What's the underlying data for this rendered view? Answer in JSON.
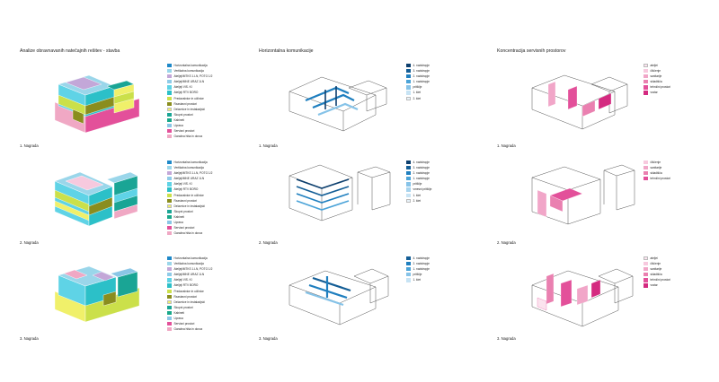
{
  "columns": [
    {
      "id": "stavba",
      "title": "Analize obravnavanih natečajnih rešitev - stavba"
    },
    {
      "id": "horiz",
      "title": "Horizontalna komunikacije"
    },
    {
      "id": "servis",
      "title": "Koncentracija servisnih prostorov"
    }
  ],
  "captions": [
    "1. Nagrada",
    "2. Nagrada",
    "3. Nagrada"
  ],
  "legend_stavba_1": [
    {
      "label": "Horizontalna komunikacija",
      "color": "#1e88c8"
    },
    {
      "label": "Vertikalna komunikacija",
      "color": "#9ad6ea"
    },
    {
      "label": "Ateljeji/MTKS 1.LN, POTG 1/2",
      "color": "#c3a7d8"
    },
    {
      "label": "Ateljeji/MNE URAZ 1LN",
      "color": "#8fcbe8"
    },
    {
      "label": "Ateljeji VIS. KI",
      "color": "#5fd3e6"
    },
    {
      "label": "Ateljeji RTV BORO",
      "color": "#2cc0c8"
    },
    {
      "label": "Predavalnice in učilnice",
      "color": "#cbe04a"
    },
    {
      "label": "Razstavni prostori",
      "color": "#8a8d1e"
    },
    {
      "label": "Delavnice in instalacijski",
      "color": "#f0f06a"
    },
    {
      "label": "Skupni prostori",
      "color": "#1aa595"
    },
    {
      "label": "Kabineti",
      "color": "#18a88a"
    },
    {
      "label": "Uprava",
      "color": "#8ac6e6"
    },
    {
      "label": "Servisni prostori",
      "color": "#e3509a"
    },
    {
      "label": "Garažna hiša in dovoz",
      "color": "#f0a8c4"
    }
  ],
  "legend_stavba_2": [
    {
      "label": "Horizontalna komunikacija",
      "color": "#1e88c8"
    },
    {
      "label": "Vertikalna komunikacija",
      "color": "#9ad6ea"
    },
    {
      "label": "Ateljeji/MTKS 1.LN, POTG 1/2",
      "color": "#c3a7d8"
    },
    {
      "label": "Ateljeji/MNE URAZ 1LN",
      "color": "#8fcbe8"
    },
    {
      "label": "Ateljeji VIS. KI",
      "color": "#5fd3e6"
    },
    {
      "label": "Ateljeji RTV BORO",
      "color": "#2cc0c8"
    },
    {
      "label": "Predavalnice in učilnice",
      "color": "#cbe04a"
    },
    {
      "label": "Razstavni prostori",
      "color": "#8a8d1e"
    },
    {
      "label": "Delavnice in instalacijski",
      "color": "#f0f06a"
    },
    {
      "label": "Skupni prostori",
      "color": "#1aa595"
    },
    {
      "label": "Kabineti",
      "color": "#18a88a"
    },
    {
      "label": "Uprava",
      "color": "#8ac6e6"
    },
    {
      "label": "Servisni prostori",
      "color": "#e3509a"
    },
    {
      "label": "Garažna hiša in dovoz",
      "color": "#f0a8c4"
    }
  ],
  "legend_stavba_3": [
    {
      "label": "Horizontalna komunikacija",
      "color": "#1e88c8"
    },
    {
      "label": "Vertikalna komunikacija",
      "color": "#9ad6ea"
    },
    {
      "label": "Ateljeji/MTKS 1.LN, POTG 1/2",
      "color": "#c3a7d8"
    },
    {
      "label": "Ateljeji/MNE URAZ 1LN",
      "color": "#8fcbe8"
    },
    {
      "label": "Ateljeji VIS. KI",
      "color": "#5fd3e6"
    },
    {
      "label": "Ateljeji RTV BORO",
      "color": "#2cc0c8"
    },
    {
      "label": "Predavalnice in učilnice",
      "color": "#cbe04a"
    },
    {
      "label": "Razstavni prostori",
      "color": "#8a8d1e"
    },
    {
      "label": "Delavnice in instalacijski",
      "color": "#f0f06a"
    },
    {
      "label": "Skupni prostori",
      "color": "#1aa595"
    },
    {
      "label": "Kabineti",
      "color": "#18a88a"
    },
    {
      "label": "Uprava",
      "color": "#8ac6e6"
    },
    {
      "label": "Servisni prostori",
      "color": "#e3509a"
    },
    {
      "label": "Garažna hiša in dovoz",
      "color": "#f0a8c4"
    }
  ],
  "legend_horiz_1": [
    {
      "label": "4. nadstropje",
      "color": "#0d3f6e"
    },
    {
      "label": "3. nadstropje",
      "color": "#145e96"
    },
    {
      "label": "2. nadstropje",
      "color": "#1f7fbf"
    },
    {
      "label": "1. nadstropje",
      "color": "#4aa3d8"
    },
    {
      "label": "pritličje",
      "color": "#86c3e8"
    },
    {
      "label": "1. klet",
      "color": "#c7e3f4"
    },
    {
      "label": "2. klet",
      "color": "#e8f3fa"
    }
  ],
  "legend_horiz_2": [
    {
      "label": "4. nadstropje",
      "color": "#0d3f6e"
    },
    {
      "label": "3. nadstropje",
      "color": "#145e96"
    },
    {
      "label": "2. nadstropje",
      "color": "#1f7fbf"
    },
    {
      "label": "1. nadstropje",
      "color": "#4aa3d8"
    },
    {
      "label": "pritličje",
      "color": "#86c3e8"
    },
    {
      "label": "vmesni pritličje",
      "color": "#a8d4ee"
    },
    {
      "label": "1. klet",
      "color": "#c7e3f4"
    },
    {
      "label": "2. klet",
      "color": "#e8f3fa"
    }
  ],
  "legend_horiz_3": [
    {
      "label": "4. nadstropje",
      "color": "#145e96"
    },
    {
      "label": "2. nadstropje",
      "color": "#1f7fbf"
    },
    {
      "label": "1. nadstropje",
      "color": "#4aa3d8"
    },
    {
      "label": "pritličje",
      "color": "#86c3e8"
    },
    {
      "label": "1. klet",
      "color": "#c7e3f4"
    }
  ],
  "legend_servis_1": [
    {
      "label": "ateljei",
      "color": "#fbe3ee"
    },
    {
      "label": "člščenje",
      "color": "#f7c9de"
    },
    {
      "label": "sanitarije",
      "color": "#f1a6c8"
    },
    {
      "label": "skladišča",
      "color": "#ea80b0"
    },
    {
      "label": "tehnični prostori",
      "color": "#e3509a"
    },
    {
      "label": "vratar",
      "color": "#d42a80"
    }
  ],
  "legend_servis_2": [
    {
      "label": "čiščenje",
      "color": "#f7c9de"
    },
    {
      "label": "sanitarije",
      "color": "#f1a6c8"
    },
    {
      "label": "skladišča",
      "color": "#ea80b0"
    },
    {
      "label": "tehnični prostori",
      "color": "#e3509a"
    }
  ],
  "legend_servis_3": [
    {
      "label": "ateljei",
      "color": "#fbe3ee"
    },
    {
      "label": "čiščenje",
      "color": "#f7c9de"
    },
    {
      "label": "sanitarije",
      "color": "#f1a6c8"
    },
    {
      "label": "skladišča",
      "color": "#ea80b0"
    },
    {
      "label": "tehnični prostori",
      "color": "#e3509a"
    },
    {
      "label": "vratar",
      "color": "#d42a80"
    }
  ]
}
